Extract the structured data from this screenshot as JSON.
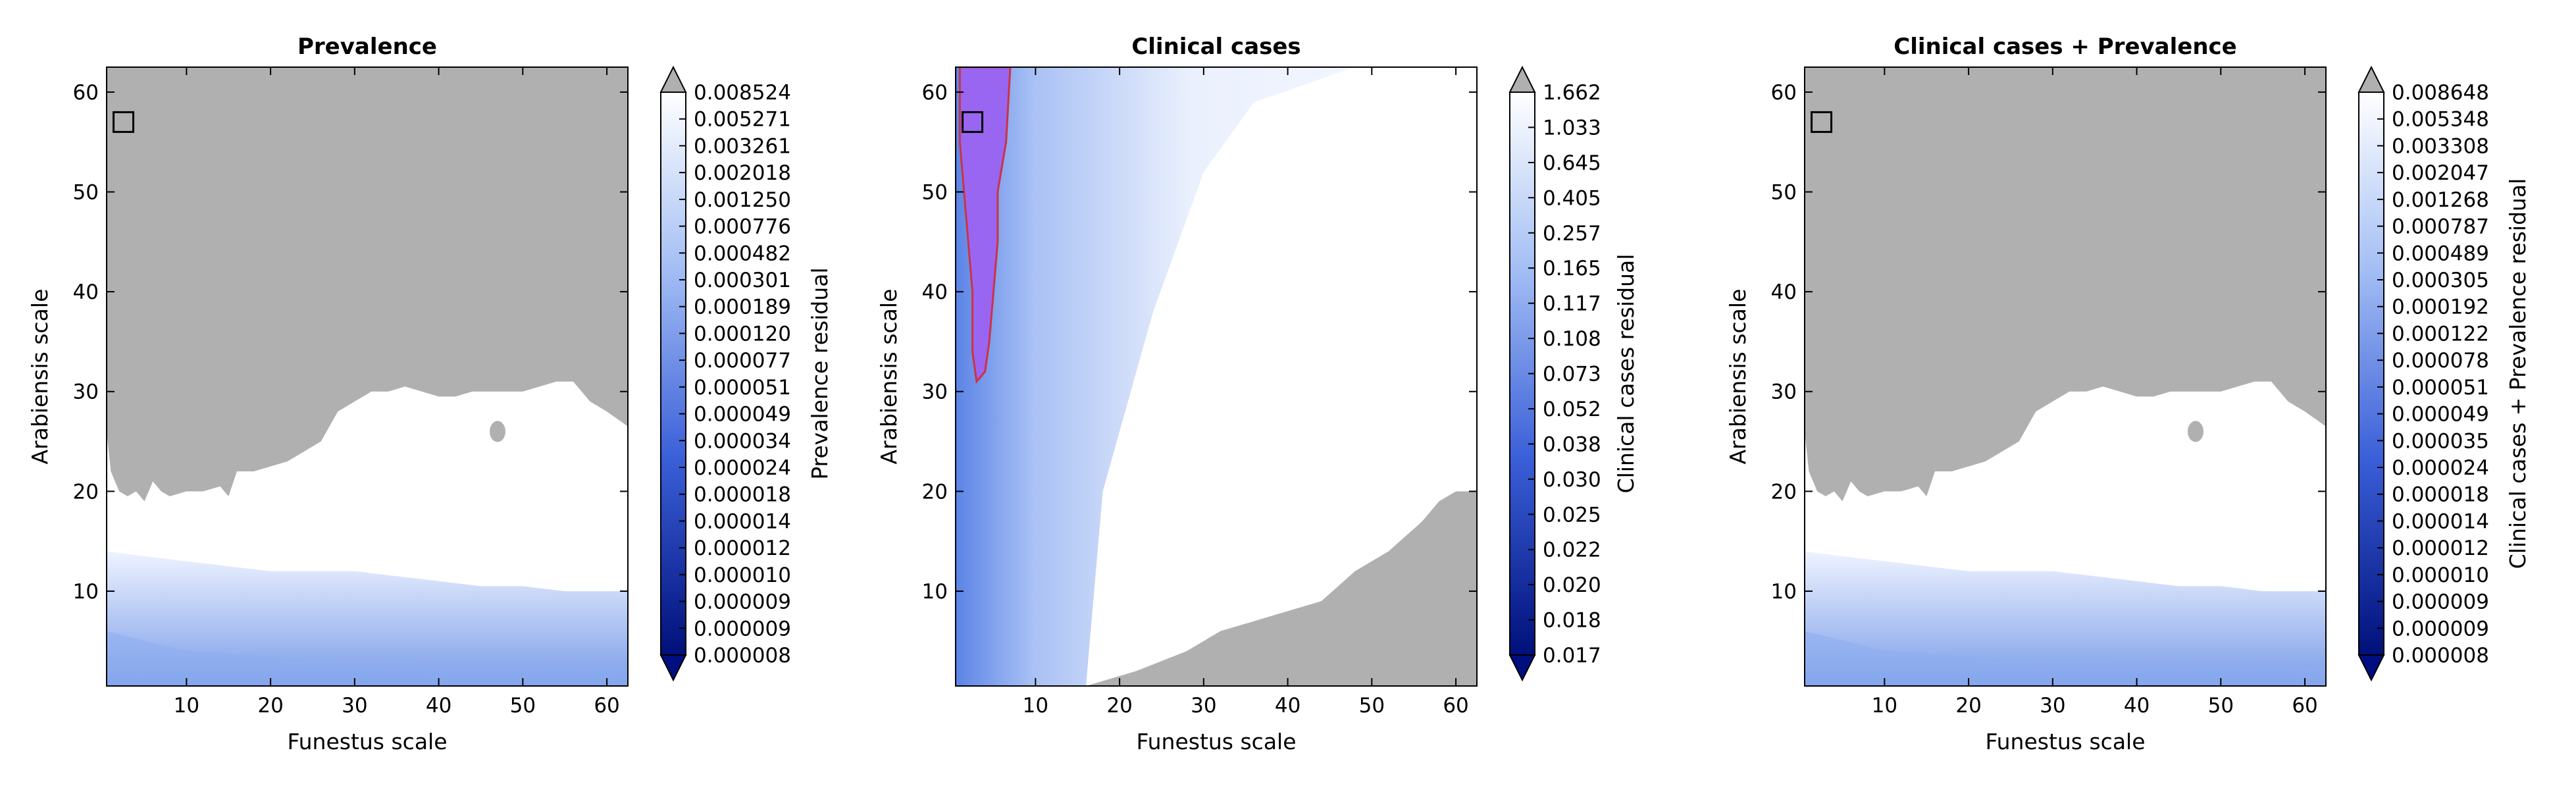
{
  "chart_data": [
    {
      "type": "heatmap",
      "title": "Prevalence",
      "xlabel": "Funestus scale",
      "ylabel": "Arabiensis scale",
      "xlim": [
        0.5,
        62.5
      ],
      "ylim": [
        0.5,
        62.5
      ],
      "xticks": [
        10,
        20,
        30,
        40,
        50,
        60
      ],
      "yticks": [
        10,
        20,
        30,
        40,
        50,
        60
      ],
      "colorbar_label": "Prevalence residual",
      "colorbar_ticks": [
        "0.008524",
        "0.005271",
        "0.003261",
        "0.002018",
        "0.001250",
        "0.000776",
        "0.000482",
        "0.000301",
        "0.000189",
        "0.000120",
        "0.000077",
        "0.000051",
        "0.000049",
        "0.000034",
        "0.000024",
        "0.000018",
        "0.000014",
        "0.000012",
        "0.000010",
        "0.000009",
        "0.000009",
        "0.000008"
      ],
      "gray_region_lower_boundary": [
        [
          0.5,
          26
        ],
        [
          1,
          22
        ],
        [
          2,
          20
        ],
        [
          3,
          19.5
        ],
        [
          4,
          20
        ],
        [
          5,
          19
        ],
        [
          6,
          21
        ],
        [
          7,
          20
        ],
        [
          8,
          19.5
        ],
        [
          10,
          20
        ],
        [
          12,
          20
        ],
        [
          14,
          20.5
        ],
        [
          15,
          19.5
        ],
        [
          16,
          22
        ],
        [
          18,
          22
        ],
        [
          20,
          22.5
        ],
        [
          22,
          23
        ],
        [
          24,
          24
        ],
        [
          26,
          25
        ],
        [
          28,
          28
        ],
        [
          30,
          29
        ],
        [
          32,
          30
        ],
        [
          34,
          30
        ],
        [
          36,
          30.5
        ],
        [
          38,
          30
        ],
        [
          40,
          29.5
        ],
        [
          42,
          29.5
        ],
        [
          44,
          30
        ],
        [
          46,
          30
        ],
        [
          48,
          30
        ],
        [
          50,
          30
        ],
        [
          52,
          30.5
        ],
        [
          54,
          31
        ],
        [
          56,
          31
        ],
        [
          58,
          29
        ],
        [
          60,
          28
        ],
        [
          62.5,
          26.5
        ]
      ],
      "white_region_lower_boundary": [
        [
          0.5,
          14
        ],
        [
          5,
          13.5
        ],
        [
          10,
          13
        ],
        [
          15,
          12.5
        ],
        [
          20,
          12
        ],
        [
          25,
          12
        ],
        [
          30,
          12
        ],
        [
          35,
          11.5
        ],
        [
          40,
          11
        ],
        [
          45,
          10.5
        ],
        [
          50,
          10.5
        ],
        [
          55,
          10
        ],
        [
          62.5,
          10
        ]
      ],
      "marker_square": [
        2.5,
        57
      ]
    },
    {
      "type": "heatmap",
      "title": "Clinical cases",
      "xlabel": "Funestus scale",
      "ylabel": "Arabiensis scale",
      "xlim": [
        0.5,
        62.5
      ],
      "ylim": [
        0.5,
        62.5
      ],
      "xticks": [
        10,
        20,
        30,
        40,
        50,
        60
      ],
      "yticks": [
        10,
        20,
        30,
        40,
        50,
        60
      ],
      "colorbar_label": "Clinical cases residual",
      "colorbar_ticks": [
        "1.662",
        "1.033",
        "0.645",
        "0.405",
        "0.257",
        "0.165",
        "0.117",
        "0.108",
        "0.073",
        "0.052",
        "0.038",
        "0.030",
        "0.025",
        "0.022",
        "0.020",
        "0.018",
        "0.017"
      ],
      "highlight_region_boundary": [
        [
          1,
          62.5
        ],
        [
          7,
          62.5
        ],
        [
          6.5,
          55
        ],
        [
          5.5,
          50
        ],
        [
          5.5,
          45
        ],
        [
          5,
          40
        ],
        [
          4.5,
          35
        ],
        [
          4,
          32
        ],
        [
          3,
          31
        ],
        [
          2.5,
          34
        ],
        [
          2.5,
          40
        ],
        [
          2,
          45
        ],
        [
          1.5,
          50
        ],
        [
          1,
          55
        ]
      ],
      "gray_region_upper_boundary": [
        [
          16,
          0.5
        ],
        [
          22,
          2
        ],
        [
          28,
          4
        ],
        [
          32,
          6
        ],
        [
          36,
          7
        ],
        [
          40,
          8
        ],
        [
          44,
          9
        ],
        [
          48,
          12
        ],
        [
          52,
          14
        ],
        [
          56,
          17
        ],
        [
          58,
          19
        ],
        [
          60,
          20
        ],
        [
          62.5,
          20
        ]
      ],
      "marker_square": [
        2.5,
        57
      ]
    },
    {
      "type": "heatmap",
      "title": "Clinical cases + Prevalence",
      "xlabel": "Funestus scale",
      "ylabel": "Arabiensis scale",
      "xlim": [
        0.5,
        62.5
      ],
      "ylim": [
        0.5,
        62.5
      ],
      "xticks": [
        10,
        20,
        30,
        40,
        50,
        60
      ],
      "yticks": [
        10,
        20,
        30,
        40,
        50,
        60
      ],
      "colorbar_label": "Clinical cases + Prevalence residual",
      "colorbar_ticks": [
        "0.008648",
        "0.005348",
        "0.003308",
        "0.002047",
        "0.001268",
        "0.000787",
        "0.000489",
        "0.000305",
        "0.000192",
        "0.000122",
        "0.000078",
        "0.000051",
        "0.000049",
        "0.000035",
        "0.000024",
        "0.000018",
        "0.000014",
        "0.000012",
        "0.000010",
        "0.000009",
        "0.000009",
        "0.000008"
      ],
      "gray_region_lower_boundary": [
        [
          0.5,
          26
        ],
        [
          1,
          22
        ],
        [
          2,
          20
        ],
        [
          3,
          19.5
        ],
        [
          4,
          20
        ],
        [
          5,
          19
        ],
        [
          6,
          21
        ],
        [
          7,
          20
        ],
        [
          8,
          19.5
        ],
        [
          10,
          20
        ],
        [
          12,
          20
        ],
        [
          14,
          20.5
        ],
        [
          15,
          19.5
        ],
        [
          16,
          22
        ],
        [
          18,
          22
        ],
        [
          20,
          22.5
        ],
        [
          22,
          23
        ],
        [
          24,
          24
        ],
        [
          26,
          25
        ],
        [
          28,
          28
        ],
        [
          30,
          29
        ],
        [
          32,
          30
        ],
        [
          34,
          30
        ],
        [
          36,
          30.5
        ],
        [
          38,
          30
        ],
        [
          40,
          29.5
        ],
        [
          42,
          29.5
        ],
        [
          44,
          30
        ],
        [
          46,
          30
        ],
        [
          48,
          30
        ],
        [
          50,
          30
        ],
        [
          52,
          30.5
        ],
        [
          54,
          31
        ],
        [
          56,
          31
        ],
        [
          58,
          29
        ],
        [
          60,
          28
        ],
        [
          62.5,
          26.5
        ]
      ],
      "white_region_lower_boundary": [
        [
          0.5,
          14
        ],
        [
          5,
          13.5
        ],
        [
          10,
          13
        ],
        [
          15,
          12.5
        ],
        [
          20,
          12
        ],
        [
          25,
          12
        ],
        [
          30,
          12
        ],
        [
          35,
          11.5
        ],
        [
          40,
          11
        ],
        [
          45,
          10.5
        ],
        [
          50,
          10.5
        ],
        [
          55,
          10
        ],
        [
          62.5,
          10
        ]
      ],
      "marker_square": [
        2.5,
        57
      ]
    }
  ],
  "colors": {
    "gray": "#b0b0b0",
    "light_blue": "#e8efff",
    "mid_blue": "#8eadf0",
    "dark_blue": "#000f80",
    "purple": "#9966f2",
    "contour": "#cc3344"
  }
}
